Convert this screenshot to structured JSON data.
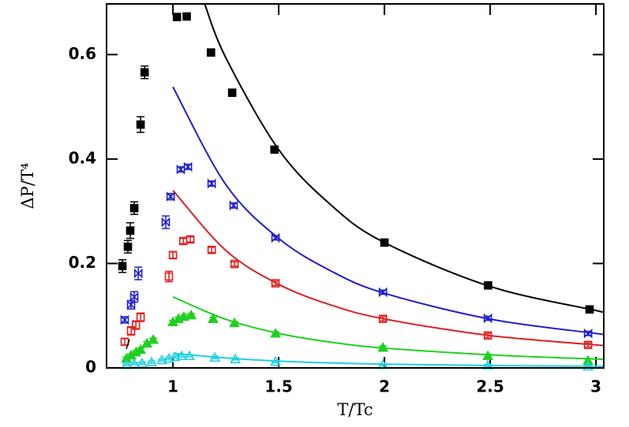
{
  "chart_data": {
    "type": "scatter",
    "xlabel": "T/Tc",
    "ylabel": "ΔP/T⁴",
    "xlim": [
      0.686,
      3.037
    ],
    "ylim": [
      0,
      0.697
    ],
    "xticks": [
      1,
      1.5,
      2,
      2.5,
      3
    ],
    "yticks": [
      0,
      0.2,
      0.4,
      0.6
    ],
    "series": [
      {
        "color": "#000000",
        "marker": "square-filled",
        "x": [
          0.761,
          0.787,
          0.798,
          0.817,
          0.847,
          0.866,
          1.019,
          1.065,
          1.18,
          1.28,
          1.48,
          2.0,
          2.49,
          2.97
        ],
        "values": [
          0.195,
          0.232,
          0.263,
          0.306,
          0.466,
          0.566,
          0.672,
          0.673,
          0.604,
          0.527,
          0.418,
          0.24,
          0.158,
          0.112
        ],
        "errors": [
          0.012,
          0.012,
          0.015,
          0.012,
          0.015,
          0.012,
          0.004,
          0.004,
          0.005,
          0.005,
          0.005,
          0.005,
          0.005,
          0.005
        ]
      },
      {
        "color": "#1f1fd0",
        "marker": "bowtie",
        "x": [
          0.772,
          0.802,
          0.817,
          0.836,
          0.966,
          0.989,
          1.037,
          1.071,
          1.183,
          1.287,
          1.485,
          1.993,
          2.489,
          2.963
        ],
        "values": [
          0.092,
          0.121,
          0.136,
          0.181,
          0.279,
          0.328,
          0.38,
          0.385,
          0.353,
          0.311,
          0.249,
          0.145,
          0.095,
          0.066
        ],
        "errors": [
          0.006,
          0.008,
          0.01,
          0.012,
          0.012,
          0.006,
          0.005,
          0.005,
          0.005,
          0.005,
          0.004,
          0.004,
          0.004,
          0.004
        ]
      },
      {
        "color": "#e02020",
        "marker": "square-open",
        "x": [
          0.772,
          0.802,
          0.825,
          0.847,
          0.981,
          1.0,
          1.049,
          1.082,
          1.183,
          1.291,
          1.485,
          1.993,
          2.489,
          2.963
        ],
        "values": [
          0.05,
          0.071,
          0.082,
          0.097,
          0.175,
          0.216,
          0.243,
          0.246,
          0.226,
          0.199,
          0.162,
          0.094,
          0.062,
          0.044
        ],
        "errors": [
          0.006,
          0.008,
          0.008,
          0.008,
          0.01,
          0.006,
          0.005,
          0.005,
          0.005,
          0.004,
          0.004,
          0.004,
          0.004,
          0.004
        ]
      },
      {
        "color": "#20d020",
        "marker": "triangle-filled",
        "x": [
          0.78,
          0.802,
          0.825,
          0.847,
          0.877,
          0.907,
          1.0,
          1.026,
          1.052,
          1.086,
          1.19,
          1.291,
          1.485,
          1.993,
          2.489,
          2.963
        ],
        "values": [
          0.018,
          0.024,
          0.03,
          0.035,
          0.047,
          0.054,
          0.088,
          0.094,
          0.098,
          0.101,
          0.094,
          0.086,
          0.066,
          0.039,
          0.023,
          0.014
        ],
        "errors": [
          0.003,
          0.003,
          0.003,
          0.003,
          0.003,
          0.003,
          0.003,
          0.003,
          0.003,
          0.003,
          0.003,
          0.003,
          0.003,
          0.003,
          0.003,
          0.003
        ]
      },
      {
        "color": "#20d0e0",
        "marker": "triangle-open",
        "x": [
          0.78,
          0.817,
          0.854,
          0.899,
          0.948,
          0.981,
          1.011,
          1.041,
          1.078,
          1.198,
          1.295,
          1.485,
          1.993,
          2.489,
          2.963
        ],
        "values": [
          0.006,
          0.008,
          0.009,
          0.011,
          0.015,
          0.018,
          0.021,
          0.023,
          0.023,
          0.02,
          0.017,
          0.012,
          0.006,
          0.005,
          0.003
        ],
        "errors": [
          0.002,
          0.002,
          0.002,
          0.002,
          0.002,
          0.002,
          0.002,
          0.002,
          0.002,
          0.002,
          0.002,
          0.002,
          0.002,
          0.002,
          0.002
        ]
      }
    ],
    "curves": [
      {
        "color": "#000000",
        "x": [
          1.15,
          1.25,
          1.5,
          1.75,
          2,
          2.5,
          3,
          3.037
        ],
        "values": [
          0.697,
          0.594,
          0.418,
          0.311,
          0.24,
          0.156,
          0.11,
          0.107
        ]
      },
      {
        "color": "#1f1fd0",
        "x": [
          1.0,
          1.25,
          1.5,
          1.75,
          2,
          2.5,
          3,
          3.037
        ],
        "values": [
          0.538,
          0.351,
          0.248,
          0.185,
          0.143,
          0.0935,
          0.066,
          0.0643
        ]
      },
      {
        "color": "#e02020",
        "x": [
          1.0,
          1.25,
          1.5,
          1.75,
          2,
          2.5,
          3,
          3.037
        ],
        "values": [
          0.34,
          0.225,
          0.16,
          0.12,
          0.0937,
          0.0619,
          0.0441,
          0.043
        ]
      },
      {
        "color": "#20d020",
        "x": [
          1.0,
          1.25,
          1.5,
          1.75,
          2,
          2.5,
          3,
          3.037
        ],
        "values": [
          0.136,
          0.093,
          0.066,
          0.049,
          0.038,
          0.025,
          0.017,
          0.0166
        ]
      },
      {
        "color": "#20d0e0",
        "x": [
          1.0,
          1.25,
          1.5,
          1.75,
          2,
          2.5,
          3,
          3.037
        ],
        "values": [
          0.028,
          0.019,
          0.013,
          0.0095,
          0.0072,
          0.0046,
          0.0032,
          0.0031
        ]
      }
    ]
  }
}
